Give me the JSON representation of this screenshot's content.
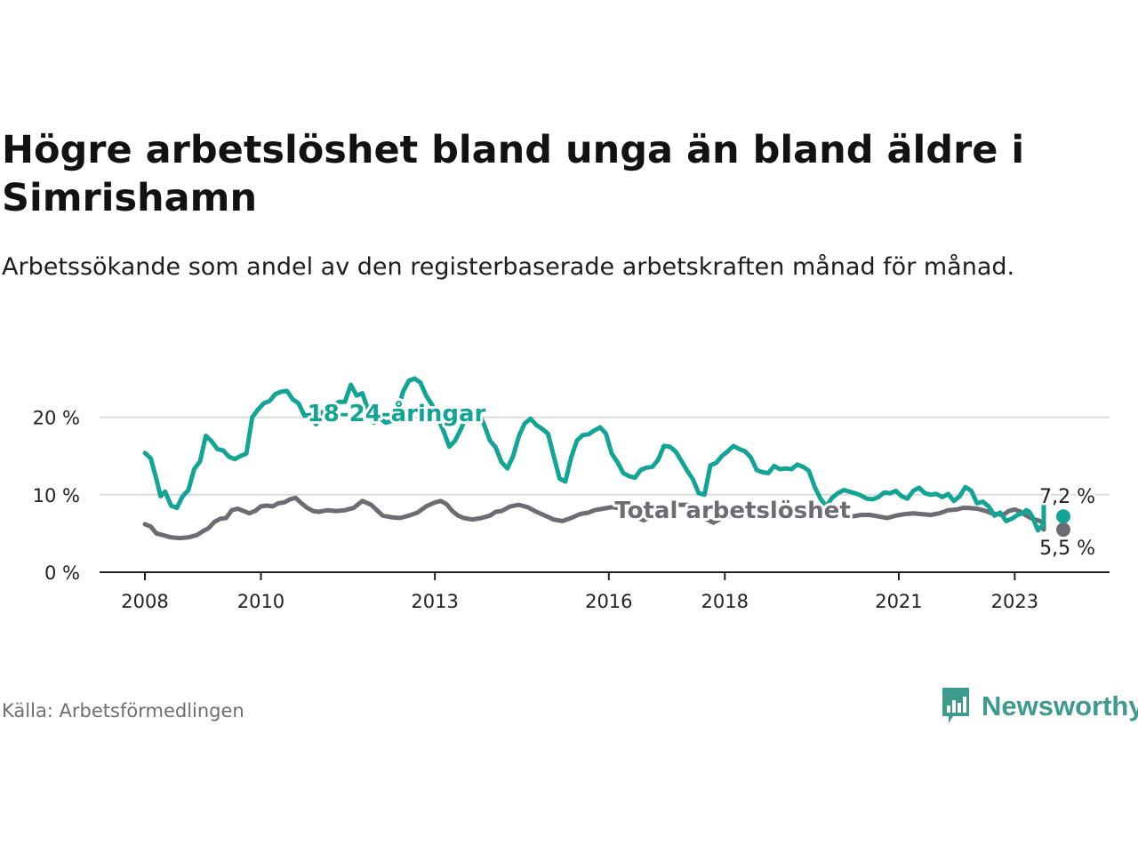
{
  "title": "Högre arbetslöshet bland unga än bland äldre i Simrishamn",
  "subtitle": "Arbetssökande som andel av den registerbaserade arbetskraften månad för månad.",
  "source": "Källa: Arbetsförmedlingen",
  "brand": "Newsworthy",
  "colors": {
    "youth": "#12a596",
    "total": "#6e6c72",
    "grid": "#dcdcdc",
    "axis": "#222222",
    "brand": "#3d9a8c"
  },
  "chart_data": {
    "type": "line",
    "xlim": [
      2008.0,
      2023.5
    ],
    "ylim": [
      0,
      25
    ],
    "y_ticks": [
      0,
      10,
      20
    ],
    "y_tick_labels": [
      "0 %",
      "10 %",
      "20 %"
    ],
    "x_ticks": [
      2008,
      2010,
      2013,
      2016,
      2018,
      2021,
      2023
    ],
    "x_tick_labels": [
      "2008",
      "2010",
      "2013",
      "2016",
      "2018",
      "2021",
      "2023"
    ],
    "grid": "horizontal",
    "series": [
      {
        "name": "18-24-åringar",
        "label": "18-24-åringar",
        "label_at": [
          2010.8,
          19.5
        ],
        "end_label": "7,2 %",
        "points": [
          [
            2008.0,
            15.4
          ],
          [
            2008.1,
            14.7
          ],
          [
            2008.2,
            12.0
          ],
          [
            2008.27,
            9.8
          ],
          [
            2008.35,
            10.4
          ],
          [
            2008.45,
            8.6
          ],
          [
            2008.55,
            8.3
          ],
          [
            2008.65,
            9.8
          ],
          [
            2008.75,
            10.6
          ],
          [
            2008.85,
            13.3
          ],
          [
            2008.95,
            14.3
          ],
          [
            2009.05,
            17.6
          ],
          [
            2009.15,
            16.9
          ],
          [
            2009.25,
            15.9
          ],
          [
            2009.35,
            15.7
          ],
          [
            2009.45,
            14.9
          ],
          [
            2009.55,
            14.6
          ],
          [
            2009.65,
            15.0
          ],
          [
            2009.75,
            15.3
          ],
          [
            2009.85,
            20.0
          ],
          [
            2009.95,
            21.0
          ],
          [
            2010.05,
            21.8
          ],
          [
            2010.15,
            22.1
          ],
          [
            2010.25,
            23.0
          ],
          [
            2010.35,
            23.3
          ],
          [
            2010.45,
            23.4
          ],
          [
            2010.55,
            22.3
          ],
          [
            2010.65,
            21.8
          ],
          [
            2010.75,
            20.2
          ],
          [
            2010.85,
            20.3
          ],
          [
            2010.95,
            19.1
          ],
          [
            2011.05,
            20.6
          ],
          [
            2011.15,
            21.1
          ],
          [
            2011.25,
            21.5
          ],
          [
            2011.35,
            22.0
          ],
          [
            2011.45,
            22.0
          ],
          [
            2011.55,
            24.2
          ],
          [
            2011.65,
            22.8
          ],
          [
            2011.75,
            23.1
          ],
          [
            2011.85,
            20.9
          ],
          [
            2011.95,
            19.3
          ],
          [
            2012.05,
            19.9
          ],
          [
            2012.15,
            19.3
          ],
          [
            2012.25,
            19.5
          ],
          [
            2012.35,
            20.6
          ],
          [
            2012.45,
            23.3
          ],
          [
            2012.55,
            24.7
          ],
          [
            2012.65,
            25.0
          ],
          [
            2012.75,
            24.5
          ],
          [
            2012.85,
            22.8
          ],
          [
            2012.95,
            21.6
          ],
          [
            2013.05,
            20.0
          ],
          [
            2013.15,
            18.2
          ],
          [
            2013.25,
            16.2
          ],
          [
            2013.35,
            17.0
          ],
          [
            2013.45,
            18.5
          ],
          [
            2013.55,
            20.2
          ],
          [
            2013.65,
            20.9
          ],
          [
            2013.75,
            20.8
          ],
          [
            2013.85,
            19.0
          ],
          [
            2013.95,
            17.0
          ],
          [
            2014.05,
            16.1
          ],
          [
            2014.15,
            14.2
          ],
          [
            2014.25,
            13.4
          ],
          [
            2014.35,
            15.0
          ],
          [
            2014.45,
            17.6
          ],
          [
            2014.55,
            19.2
          ],
          [
            2014.65,
            19.8
          ],
          [
            2014.75,
            19.0
          ],
          [
            2014.85,
            18.5
          ],
          [
            2014.95,
            17.9
          ],
          [
            2015.05,
            15.0
          ],
          [
            2015.15,
            12.1
          ],
          [
            2015.25,
            11.7
          ],
          [
            2015.35,
            14.8
          ],
          [
            2015.45,
            17.0
          ],
          [
            2015.55,
            17.7
          ],
          [
            2015.65,
            17.8
          ],
          [
            2015.75,
            18.3
          ],
          [
            2015.85,
            18.7
          ],
          [
            2015.95,
            17.9
          ],
          [
            2016.05,
            15.3
          ],
          [
            2016.15,
            14.2
          ],
          [
            2016.25,
            12.8
          ],
          [
            2016.35,
            12.4
          ],
          [
            2016.45,
            12.2
          ],
          [
            2016.55,
            13.2
          ],
          [
            2016.65,
            13.5
          ],
          [
            2016.75,
            13.6
          ],
          [
            2016.85,
            14.5
          ],
          [
            2016.95,
            16.3
          ],
          [
            2017.05,
            16.2
          ],
          [
            2017.15,
            15.6
          ],
          [
            2017.25,
            14.4
          ],
          [
            2017.35,
            13.1
          ],
          [
            2017.45,
            12.0
          ],
          [
            2017.55,
            10.2
          ],
          [
            2017.65,
            10.0
          ],
          [
            2017.75,
            13.8
          ],
          [
            2017.85,
            14.1
          ],
          [
            2017.95,
            15.0
          ],
          [
            2018.05,
            15.6
          ],
          [
            2018.15,
            16.3
          ],
          [
            2018.25,
            15.9
          ],
          [
            2018.35,
            15.6
          ],
          [
            2018.45,
            14.8
          ],
          [
            2018.55,
            13.2
          ],
          [
            2018.65,
            12.9
          ],
          [
            2018.75,
            12.8
          ],
          [
            2018.85,
            13.7
          ],
          [
            2018.95,
            13.3
          ],
          [
            2019.05,
            13.4
          ],
          [
            2019.15,
            13.3
          ],
          [
            2019.25,
            13.9
          ],
          [
            2019.35,
            13.6
          ],
          [
            2019.45,
            13.1
          ],
          [
            2019.55,
            11.0
          ],
          [
            2019.65,
            9.5
          ],
          [
            2019.75,
            8.5
          ],
          [
            2019.85,
            9.6
          ],
          [
            2019.95,
            10.2
          ],
          [
            2020.05,
            10.6
          ],
          [
            2020.15,
            10.4
          ],
          [
            2020.25,
            10.2
          ],
          [
            2020.35,
            9.9
          ],
          [
            2020.45,
            9.5
          ],
          [
            2020.55,
            9.4
          ],
          [
            2020.65,
            9.7
          ],
          [
            2020.75,
            10.3
          ],
          [
            2020.85,
            10.2
          ],
          [
            2020.95,
            10.5
          ],
          [
            2021.05,
            9.8
          ],
          [
            2021.15,
            9.5
          ],
          [
            2021.25,
            10.5
          ],
          [
            2021.35,
            10.9
          ],
          [
            2021.45,
            10.2
          ],
          [
            2021.55,
            10.0
          ],
          [
            2021.65,
            10.1
          ],
          [
            2021.75,
            9.7
          ],
          [
            2021.85,
            10.1
          ],
          [
            2021.95,
            9.2
          ],
          [
            2022.05,
            9.8
          ],
          [
            2022.15,
            11.0
          ],
          [
            2022.25,
            10.5
          ],
          [
            2022.35,
            8.9
          ],
          [
            2022.45,
            9.1
          ],
          [
            2022.55,
            8.5
          ],
          [
            2022.65,
            7.3
          ],
          [
            2022.75,
            7.7
          ],
          [
            2022.85,
            6.6
          ],
          [
            2022.95,
            6.9
          ],
          [
            2023.05,
            7.4
          ],
          [
            2023.15,
            7.7
          ],
          [
            2023.2,
            8.0
          ],
          [
            2023.25,
            7.8
          ],
          [
            2023.3,
            7.2
          ],
          [
            2023.35,
            6.3
          ],
          [
            2023.4,
            5.4
          ],
          [
            2023.45,
            5.8
          ],
          [
            2023.5,
            6.2
          ],
          [
            2023.55,
            6.5
          ],
          [
            2023.6,
            7.0
          ],
          [
            2023.65,
            7.8
          ],
          [
            2023.7,
            8.3
          ],
          [
            2023.75,
            9.0
          ],
          [
            2023.8,
            8.6
          ],
          [
            2023.85,
            8.0
          ],
          [
            2023.9,
            7.6
          ],
          [
            2023.95,
            7.9
          ],
          [
            2024.0,
            7.8
          ],
          [
            2024.05,
            7.2
          ]
        ]
      },
      {
        "name": "Total arbetslöshet",
        "label": "Total arbetslöshet",
        "label_at": [
          2016.1,
          7.0
        ],
        "end_label": "5,5 %",
        "points": [
          [
            2008.0,
            6.2
          ],
          [
            2008.1,
            5.9
          ],
          [
            2008.2,
            5.0
          ],
          [
            2008.3,
            4.8
          ],
          [
            2008.45,
            4.5
          ],
          [
            2008.6,
            4.4
          ],
          [
            2008.75,
            4.5
          ],
          [
            2008.9,
            4.8
          ],
          [
            2009.0,
            5.3
          ],
          [
            2009.1,
            5.7
          ],
          [
            2009.2,
            6.5
          ],
          [
            2009.3,
            6.9
          ],
          [
            2009.4,
            7.0
          ],
          [
            2009.5,
            8.0
          ],
          [
            2009.6,
            8.2
          ],
          [
            2009.7,
            7.9
          ],
          [
            2009.8,
            7.6
          ],
          [
            2009.9,
            7.9
          ],
          [
            2010.0,
            8.5
          ],
          [
            2010.1,
            8.6
          ],
          [
            2010.2,
            8.5
          ],
          [
            2010.3,
            8.9
          ],
          [
            2010.4,
            9.0
          ],
          [
            2010.5,
            9.4
          ],
          [
            2010.6,
            9.6
          ],
          [
            2010.7,
            8.9
          ],
          [
            2010.8,
            8.3
          ],
          [
            2010.9,
            7.9
          ],
          [
            2011.0,
            7.8
          ],
          [
            2011.15,
            8.0
          ],
          [
            2011.3,
            7.9
          ],
          [
            2011.45,
            8.0
          ],
          [
            2011.6,
            8.3
          ],
          [
            2011.75,
            9.2
          ],
          [
            2011.9,
            8.7
          ],
          [
            2012.0,
            8.0
          ],
          [
            2012.1,
            7.3
          ],
          [
            2012.25,
            7.1
          ],
          [
            2012.4,
            7.0
          ],
          [
            2012.55,
            7.3
          ],
          [
            2012.7,
            7.7
          ],
          [
            2012.85,
            8.5
          ],
          [
            2013.0,
            9.0
          ],
          [
            2013.1,
            9.2
          ],
          [
            2013.2,
            8.8
          ],
          [
            2013.3,
            7.9
          ],
          [
            2013.4,
            7.3
          ],
          [
            2013.5,
            7.0
          ],
          [
            2013.65,
            6.8
          ],
          [
            2013.8,
            7.0
          ],
          [
            2013.95,
            7.3
          ],
          [
            2014.05,
            7.8
          ],
          [
            2014.15,
            7.9
          ],
          [
            2014.3,
            8.5
          ],
          [
            2014.45,
            8.7
          ],
          [
            2014.6,
            8.4
          ],
          [
            2014.75,
            7.8
          ],
          [
            2014.9,
            7.3
          ],
          [
            2015.05,
            6.8
          ],
          [
            2015.2,
            6.6
          ],
          [
            2015.35,
            7.0
          ],
          [
            2015.5,
            7.5
          ],
          [
            2015.65,
            7.7
          ],
          [
            2015.75,
            8.0
          ],
          [
            2015.9,
            8.2
          ],
          [
            2016.05,
            8.4
          ],
          [
            2016.15,
            8.3
          ],
          [
            2016.3,
            7.8
          ],
          [
            2016.45,
            7.2
          ],
          [
            2016.6,
            6.7
          ],
          [
            2016.75,
            7.2
          ],
          [
            2016.9,
            7.8
          ],
          [
            2017.05,
            8.3
          ],
          [
            2017.2,
            8.7
          ],
          [
            2017.35,
            8.7
          ],
          [
            2017.5,
            8.4
          ],
          [
            2017.65,
            7.0
          ],
          [
            2017.8,
            6.4
          ],
          [
            2017.95,
            7.0
          ],
          [
            2018.1,
            7.3
          ],
          [
            2018.25,
            8.0
          ],
          [
            2018.4,
            8.2
          ],
          [
            2018.55,
            8.3
          ],
          [
            2018.7,
            7.8
          ],
          [
            2018.85,
            7.5
          ],
          [
            2019.0,
            7.8
          ],
          [
            2019.15,
            7.7
          ],
          [
            2019.3,
            7.6
          ],
          [
            2019.45,
            7.6
          ],
          [
            2019.6,
            7.5
          ],
          [
            2019.75,
            7.6
          ],
          [
            2019.9,
            7.4
          ],
          [
            2020.05,
            7.2
          ],
          [
            2020.2,
            7.2
          ],
          [
            2020.35,
            7.4
          ],
          [
            2020.5,
            7.4
          ],
          [
            2020.65,
            7.2
          ],
          [
            2020.8,
            7.0
          ],
          [
            2020.95,
            7.3
          ],
          [
            2021.1,
            7.5
          ],
          [
            2021.25,
            7.6
          ],
          [
            2021.4,
            7.5
          ],
          [
            2021.55,
            7.4
          ],
          [
            2021.7,
            7.6
          ],
          [
            2021.85,
            8.0
          ],
          [
            2022.0,
            8.1
          ],
          [
            2022.1,
            8.3
          ],
          [
            2022.2,
            8.3
          ],
          [
            2022.35,
            8.2
          ],
          [
            2022.5,
            7.9
          ],
          [
            2022.6,
            7.6
          ],
          [
            2022.7,
            7.5
          ],
          [
            2022.8,
            7.4
          ],
          [
            2022.9,
            7.9
          ],
          [
            2023.0,
            8.1
          ],
          [
            2023.1,
            7.8
          ],
          [
            2023.2,
            7.3
          ],
          [
            2023.3,
            6.9
          ],
          [
            2023.4,
            6.7
          ],
          [
            2023.5,
            6.4
          ],
          [
            2023.6,
            6.2
          ],
          [
            2023.7,
            6.3
          ],
          [
            2023.85,
            6.5
          ],
          [
            2023.95,
            6.4
          ],
          [
            2024.05,
            5.5
          ]
        ]
      }
    ]
  }
}
